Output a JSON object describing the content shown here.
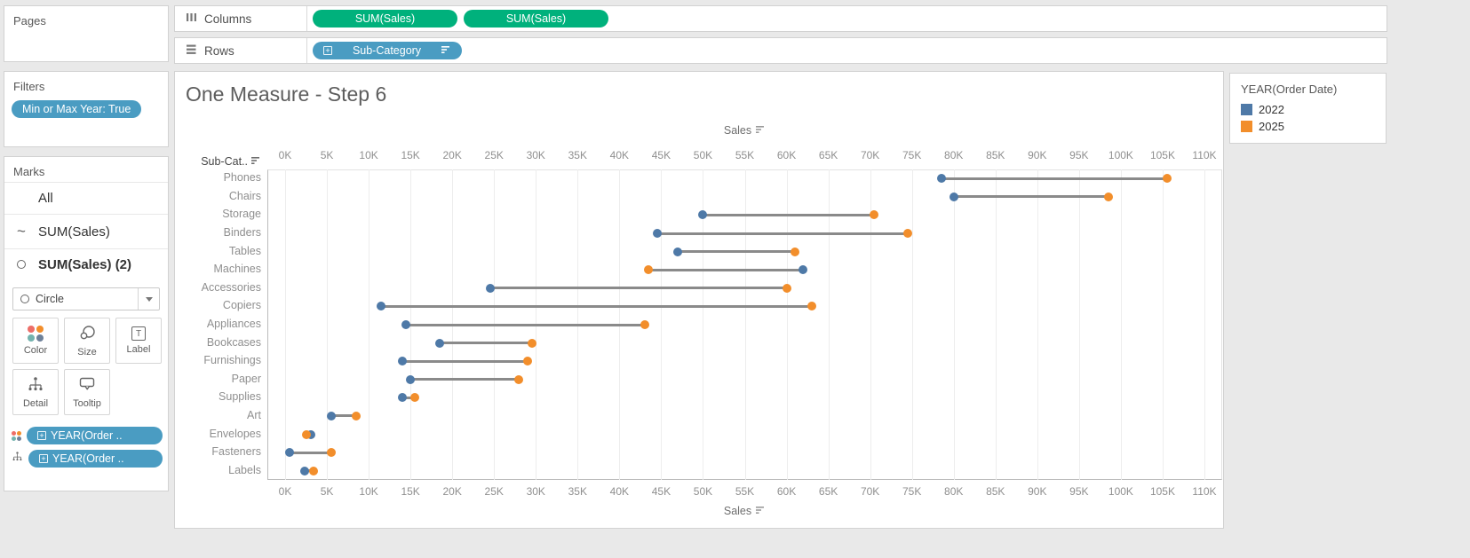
{
  "sidebar": {
    "pages_label": "Pages",
    "filters_label": "Filters",
    "filter_pill": "Min or Max Year: True",
    "marks_label": "Marks",
    "marks_items": [
      "All",
      "SUM(Sales)",
      "SUM(Sales) (2)"
    ],
    "mark_type": "Circle",
    "mark_buttons": [
      "Color",
      "Size",
      "Label",
      "Detail",
      "Tooltip"
    ],
    "marks_pills": [
      "YEAR(Order ..",
      "YEAR(Order .."
    ]
  },
  "shelves": {
    "columns_label": "Columns",
    "columns_pills": [
      "SUM(Sales)",
      "SUM(Sales)"
    ],
    "rows_label": "Rows",
    "rows_pill": "Sub-Category"
  },
  "colors": {
    "pill_green": "#00b17c",
    "pill_blue": "#4a9cc2",
    "series_2022": "#4e79a7",
    "series_2025": "#f28e2b",
    "connector": "#8a8a8a"
  },
  "chart_data": {
    "type": "dumbbell",
    "title": "One Measure - Step 6",
    "xlabel": "Sales",
    "row_header": "Sub-Cat..",
    "xlim": [
      0,
      110000
    ],
    "tick_step": 5000,
    "tick_labels": [
      "0K",
      "5K",
      "10K",
      "15K",
      "20K",
      "25K",
      "30K",
      "35K",
      "40K",
      "45K",
      "50K",
      "55K",
      "60K",
      "65K",
      "70K",
      "75K",
      "80K",
      "85K",
      "90K",
      "95K",
      "100K",
      "105K",
      "110K"
    ],
    "grid": true,
    "categories": [
      "Phones",
      "Chairs",
      "Storage",
      "Binders",
      "Tables",
      "Machines",
      "Accessories",
      "Copiers",
      "Appliances",
      "Bookcases",
      "Furnishings",
      "Paper",
      "Supplies",
      "Art",
      "Envelopes",
      "Fasteners",
      "Labels"
    ],
    "series": [
      {
        "name": "2022",
        "color": "#4e79a7",
        "values": [
          78500,
          80000,
          50000,
          44500,
          47000,
          62000,
          24500,
          11500,
          14500,
          18500,
          14000,
          15000,
          14000,
          5500,
          3100,
          500,
          2300
        ]
      },
      {
        "name": "2025",
        "color": "#f28e2b",
        "values": [
          105500,
          98500,
          70500,
          74500,
          61000,
          43500,
          60000,
          63000,
          43000,
          29500,
          29000,
          28000,
          15500,
          8500,
          2500,
          5500,
          3400
        ]
      }
    ],
    "legend": {
      "title": "YEAR(Order Date)",
      "position": "right",
      "entries": [
        {
          "label": "2022",
          "color": "#4e79a7"
        },
        {
          "label": "2025",
          "color": "#f28e2b"
        }
      ]
    }
  }
}
